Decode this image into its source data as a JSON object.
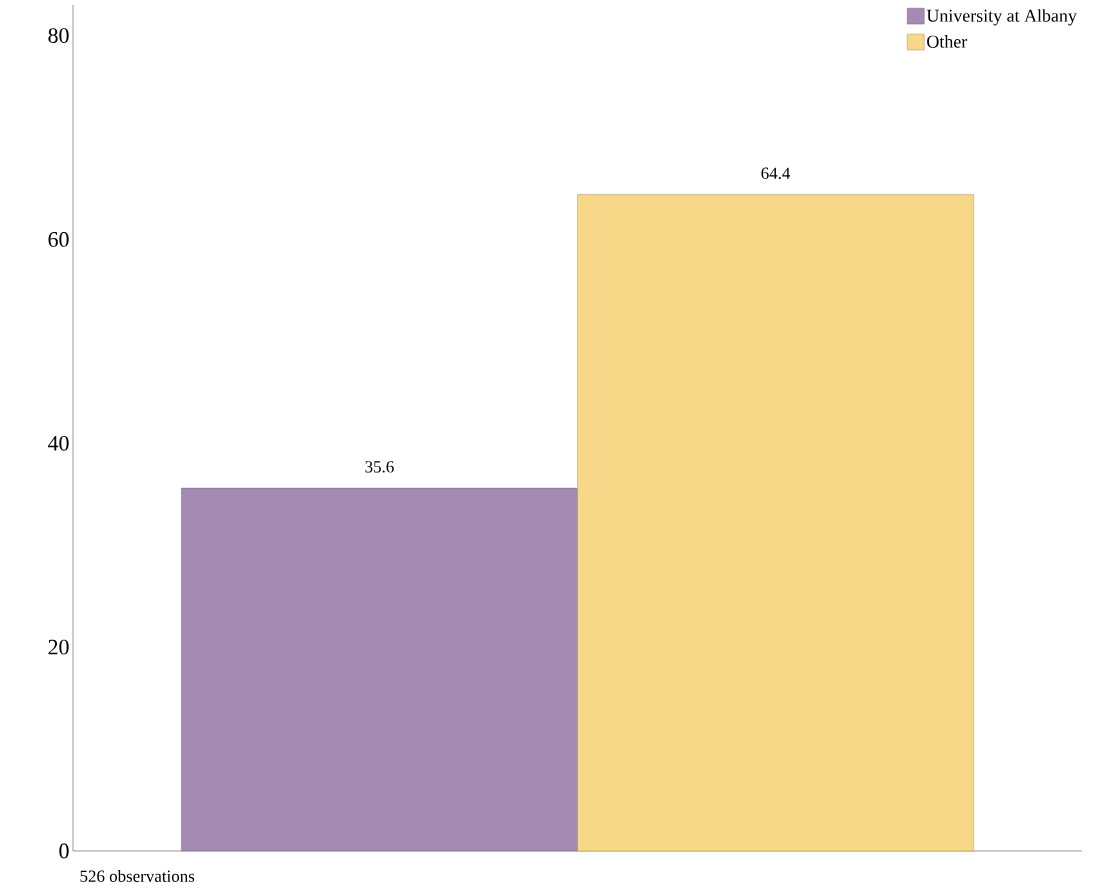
{
  "chart_data": {
    "type": "bar",
    "categories": [
      null
    ],
    "series": [
      {
        "name": "University at Albany",
        "color": "#a48bb4",
        "values": [
          35.6
        ]
      },
      {
        "name": "Other",
        "color": "#f7d788",
        "values": [
          64.4
        ]
      }
    ],
    "ylim": [
      0,
      83
    ],
    "yticks": [
      0,
      20,
      40,
      60,
      80
    ],
    "tick_labels": "y",
    "data_labels": true,
    "legend": "top right",
    "grid": false,
    "annotations": [
      "526 observations"
    ]
  }
}
